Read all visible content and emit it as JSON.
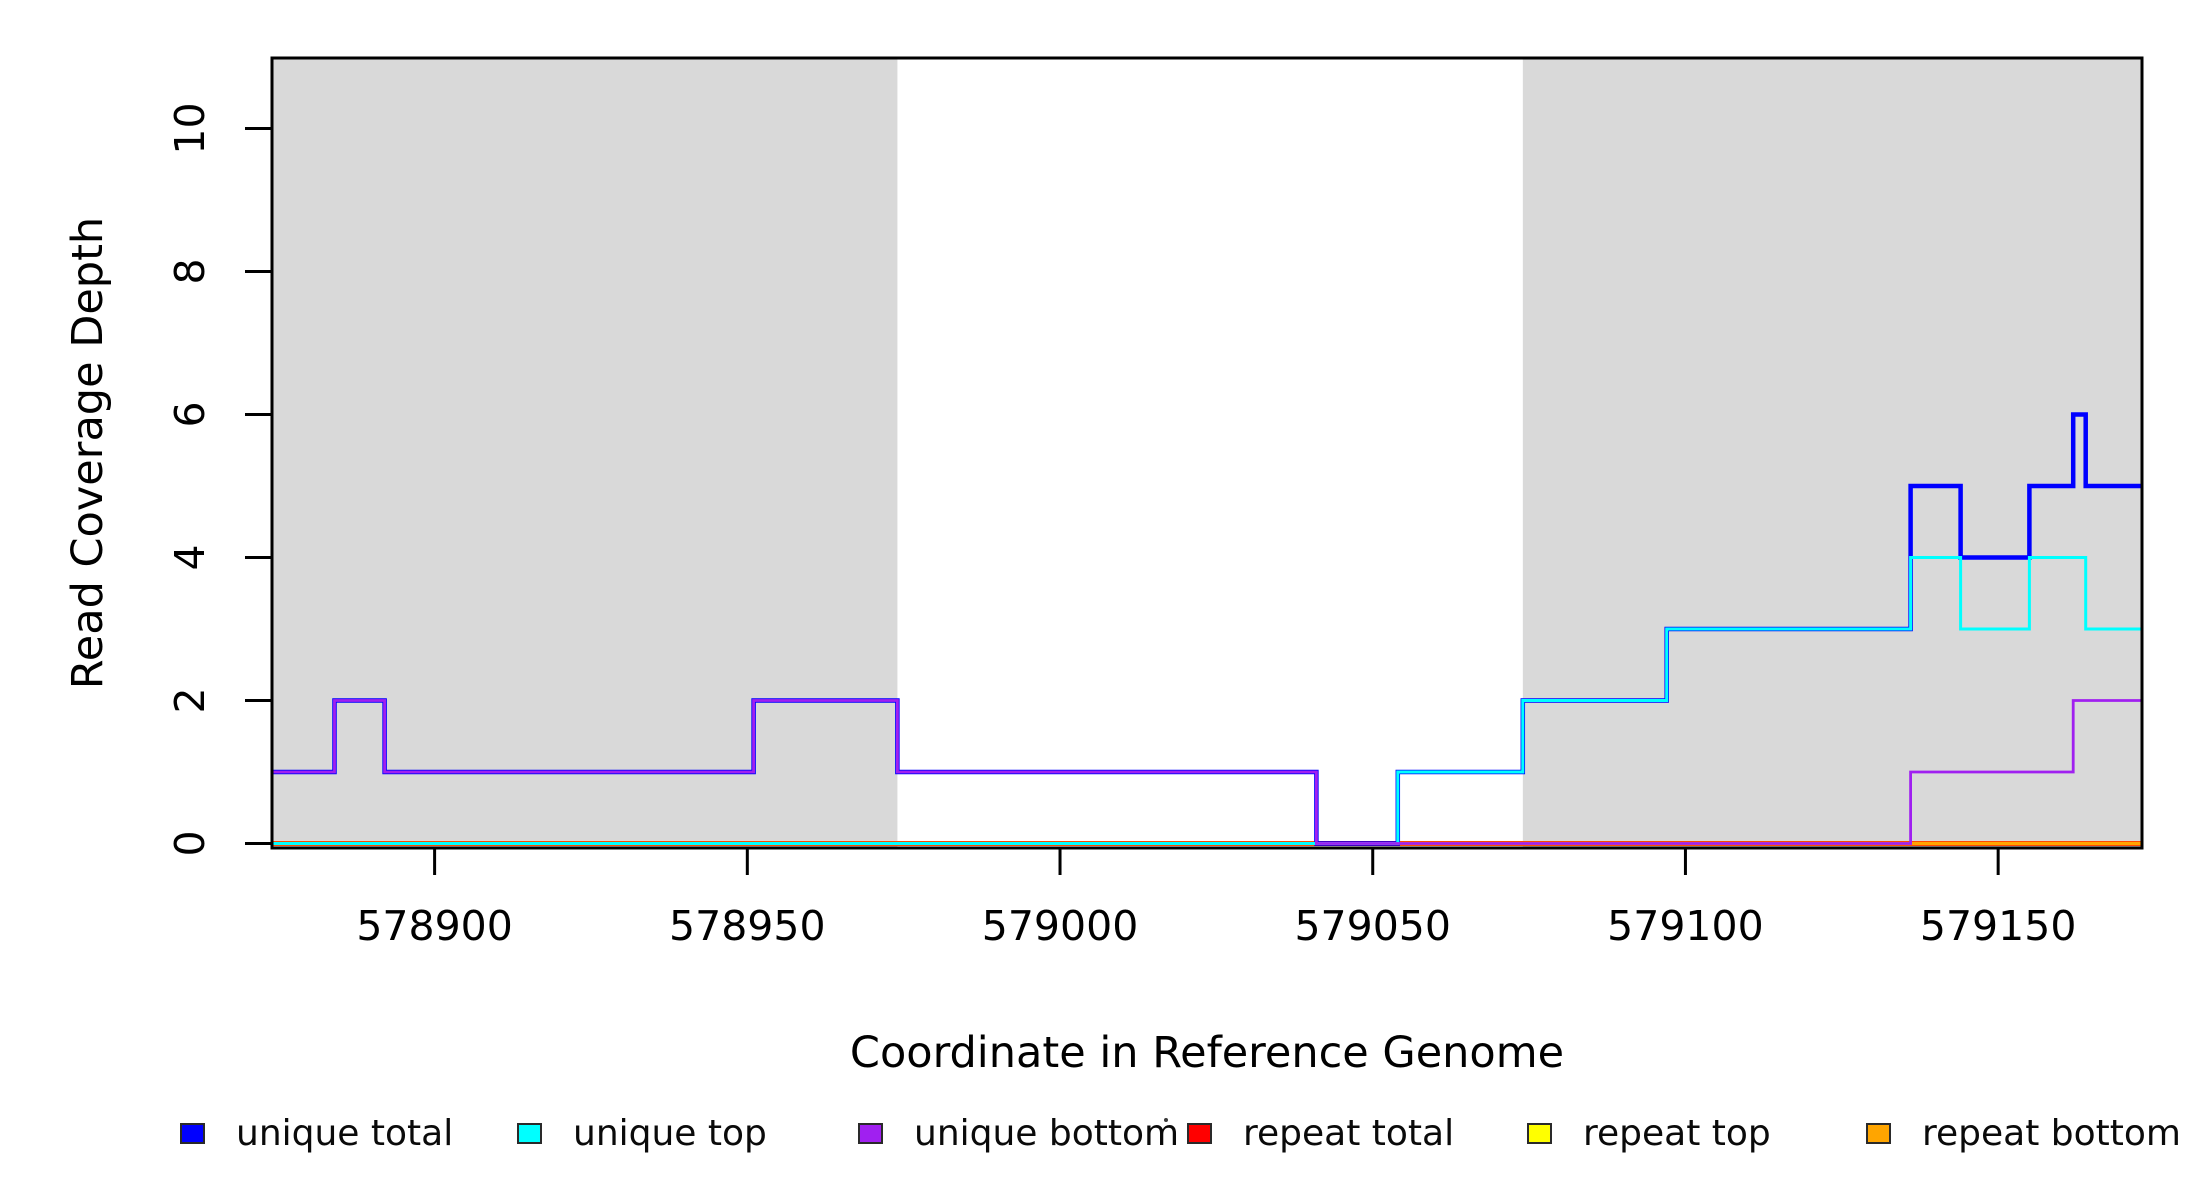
{
  "chart_data": {
    "type": "line",
    "subtype": "step-coverage",
    "title": "",
    "xlabel": "Coordinate in Reference Genome",
    "ylabel": "Read Coverage Depth",
    "xlim": [
      578874,
      579173
    ],
    "ylim": [
      0,
      11
    ],
    "x_ticks": [
      578900,
      578950,
      579000,
      579050,
      579100,
      579150
    ],
    "y_ticks": [
      0,
      2,
      4,
      6,
      8,
      10
    ],
    "grid": false,
    "legend_position": "bottom",
    "frame_color": "#000000",
    "shade_color": "#d9d9d9",
    "shaded_regions": [
      {
        "x0": 578874,
        "x1": 578974
      },
      {
        "x0": 579074,
        "x1": 579173
      }
    ],
    "series": [
      {
        "name": "repeat total",
        "color": "#ff0000",
        "width": 5,
        "points": [
          [
            578874,
            0
          ],
          [
            579173,
            0
          ]
        ]
      },
      {
        "name": "repeat top",
        "color": "#ffff00",
        "width": 3.5,
        "points": [
          [
            578874,
            0
          ],
          [
            579173,
            0
          ]
        ]
      },
      {
        "name": "repeat bottom",
        "color": "#ffa500",
        "width": 3.5,
        "points": [
          [
            578874,
            0
          ],
          [
            579173,
            0
          ]
        ]
      },
      {
        "name": "unique total",
        "color": "#0000ff",
        "width": 4.5,
        "points": [
          [
            578874,
            1
          ],
          [
            578884,
            1
          ],
          [
            578884,
            2
          ],
          [
            578892,
            2
          ],
          [
            578892,
            1
          ],
          [
            578951,
            1
          ],
          [
            578951,
            2
          ],
          [
            578974,
            2
          ],
          [
            578974,
            1
          ],
          [
            579041,
            1
          ],
          [
            579041,
            0
          ],
          [
            579054,
            0
          ],
          [
            579054,
            1
          ],
          [
            579074,
            1
          ],
          [
            579074,
            2
          ],
          [
            579097,
            2
          ],
          [
            579097,
            3
          ],
          [
            579136,
            3
          ],
          [
            579136,
            5
          ],
          [
            579144,
            5
          ],
          [
            579144,
            4
          ],
          [
            579155,
            4
          ],
          [
            579155,
            5
          ],
          [
            579162,
            5
          ],
          [
            579162,
            6
          ],
          [
            579164,
            6
          ],
          [
            579164,
            5
          ],
          [
            579173,
            5
          ]
        ]
      },
      {
        "name": "unique top",
        "color": "#00ffff",
        "width": 3,
        "points": [
          [
            578874,
            0
          ],
          [
            579054,
            0
          ],
          [
            579054,
            1
          ],
          [
            579074,
            1
          ],
          [
            579074,
            2
          ],
          [
            579097,
            2
          ],
          [
            579097,
            3
          ],
          [
            579136,
            3
          ],
          [
            579136,
            4
          ],
          [
            579144,
            4
          ],
          [
            579144,
            3
          ],
          [
            579155,
            3
          ],
          [
            579155,
            4
          ],
          [
            579164,
            4
          ],
          [
            579164,
            3
          ],
          [
            579173,
            3
          ]
        ]
      },
      {
        "name": "unique bottom",
        "color": "#a020f0",
        "width": 2.8,
        "points": [
          [
            578874,
            1
          ],
          [
            578884,
            1
          ],
          [
            578884,
            2
          ],
          [
            578892,
            2
          ],
          [
            578892,
            1
          ],
          [
            578951,
            1
          ],
          [
            578951,
            2
          ],
          [
            578974,
            2
          ],
          [
            578974,
            1
          ],
          [
            579041,
            1
          ],
          [
            579041,
            0
          ],
          [
            579136,
            0
          ],
          [
            579136,
            1
          ],
          [
            579162,
            1
          ],
          [
            579162,
            2
          ],
          [
            579173,
            2
          ]
        ]
      }
    ],
    "legend": [
      {
        "label": "unique total",
        "color": "#0000ff"
      },
      {
        "label": "unique top",
        "color": "#00ffff"
      },
      {
        "label": "unique bottom",
        "color": "#a020f0"
      },
      {
        "label": "repeat total",
        "color": "#ff0000"
      },
      {
        "label": "repeat top",
        "color": "#ffff00"
      },
      {
        "label": "repeat bottom",
        "color": "#ffa500"
      }
    ],
    "stray_mark": "."
  }
}
